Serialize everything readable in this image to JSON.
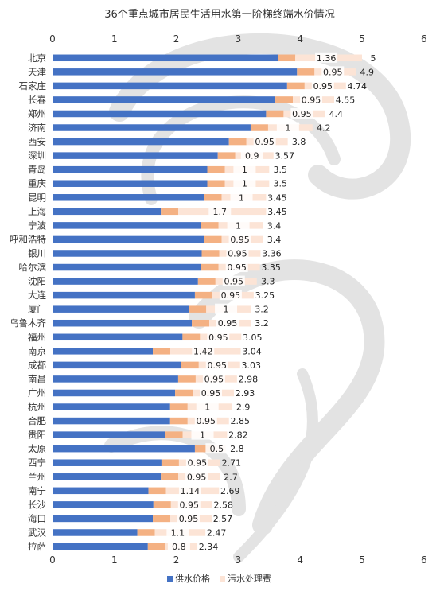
{
  "chart_data": {
    "type": "bar",
    "orientation": "horizontal",
    "stacked": true,
    "title": "36个重点城市居民生活用水第一阶梯终端水价情况",
    "xlim": [
      0,
      6
    ],
    "x_ticks": [
      "0",
      "1",
      "2",
      "3",
      "4",
      "5",
      "6"
    ],
    "x_axis_position": "top-and-bottom",
    "grid": false,
    "legend_position": "bottom",
    "colors": {
      "supply": "#4472C4",
      "sewage": "#F4B183",
      "watermark": "#E5E5E5"
    },
    "categories": [
      "北京",
      "天津",
      "石家庄",
      "长春",
      "郑州",
      "济南",
      "西安",
      "深圳",
      "青岛",
      "重庆",
      "昆明",
      "上海",
      "宁波",
      "呼和浩特",
      "银川",
      "哈尔滨",
      "沈阳",
      "大连",
      "厦门",
      "乌鲁木齐",
      "福州",
      "南京",
      "成都",
      "南昌",
      "广州",
      "杭州",
      "合肥",
      "贵阳",
      "太原",
      "西宁",
      "兰州",
      "南宁",
      "长沙",
      "海口",
      "武汉",
      "拉萨"
    ],
    "series": [
      {
        "name": "供水价格",
        "values": [
          3.64,
          3.95,
          3.79,
          3.6,
          3.45,
          3.2,
          2.85,
          2.67,
          2.5,
          2.5,
          2.45,
          1.75,
          2.4,
          2.45,
          2.41,
          2.4,
          2.35,
          2.3,
          2.2,
          2.25,
          2.1,
          1.62,
          2.08,
          2.03,
          1.98,
          1.9,
          1.9,
          1.82,
          2.3,
          1.76,
          1.75,
          1.55,
          1.63,
          1.62,
          1.37,
          1.54
        ]
      },
      {
        "name": "污水处理费",
        "values": [
          1.36,
          0.95,
          0.95,
          0.95,
          0.95,
          1,
          0.95,
          0.9,
          1,
          1,
          1,
          1.7,
          1,
          0.95,
          0.95,
          0.95,
          0.95,
          0.95,
          1,
          0.95,
          0.95,
          1.42,
          0.95,
          0.95,
          0.95,
          1,
          0.95,
          1,
          0.5,
          0.95,
          0.95,
          1.14,
          0.95,
          0.95,
          1.1,
          0.8
        ]
      }
    ],
    "sewage_labels": [
      "1.36",
      "0.95",
      "0.95",
      "0.95",
      "0.95",
      "1",
      "0.95",
      "0.9",
      "1",
      "1",
      "1",
      "1.7",
      "1",
      "0.95",
      "0.95",
      "0.95",
      "0.95",
      "0.95",
      "1",
      "0.95",
      "0.95",
      "1.42",
      "0.95",
      "0.95",
      "0.95",
      "1",
      "0.95",
      "1",
      "0.5",
      "0.95",
      "0.95",
      "1.14",
      "0.95",
      "0.95",
      "1.1",
      "0.8"
    ],
    "total_labels": [
      "5",
      "4.9",
      "4.74",
      "4.55",
      "4.4",
      "4.2",
      "3.8",
      "3.57",
      "3.5",
      "3.5",
      "3.45",
      "3.45",
      "3.4",
      "3.4",
      "3.36",
      "3.35",
      "3.3",
      "3.25",
      "3.2",
      "3.2",
      "3.05",
      "3.04",
      "3.03",
      "2.98",
      "2.93",
      "2.9",
      "2.85",
      "2.82",
      "2.8",
      "2.71",
      "2.7",
      "2.69",
      "2.58",
      "2.57",
      "2.47",
      "2.34"
    ]
  }
}
